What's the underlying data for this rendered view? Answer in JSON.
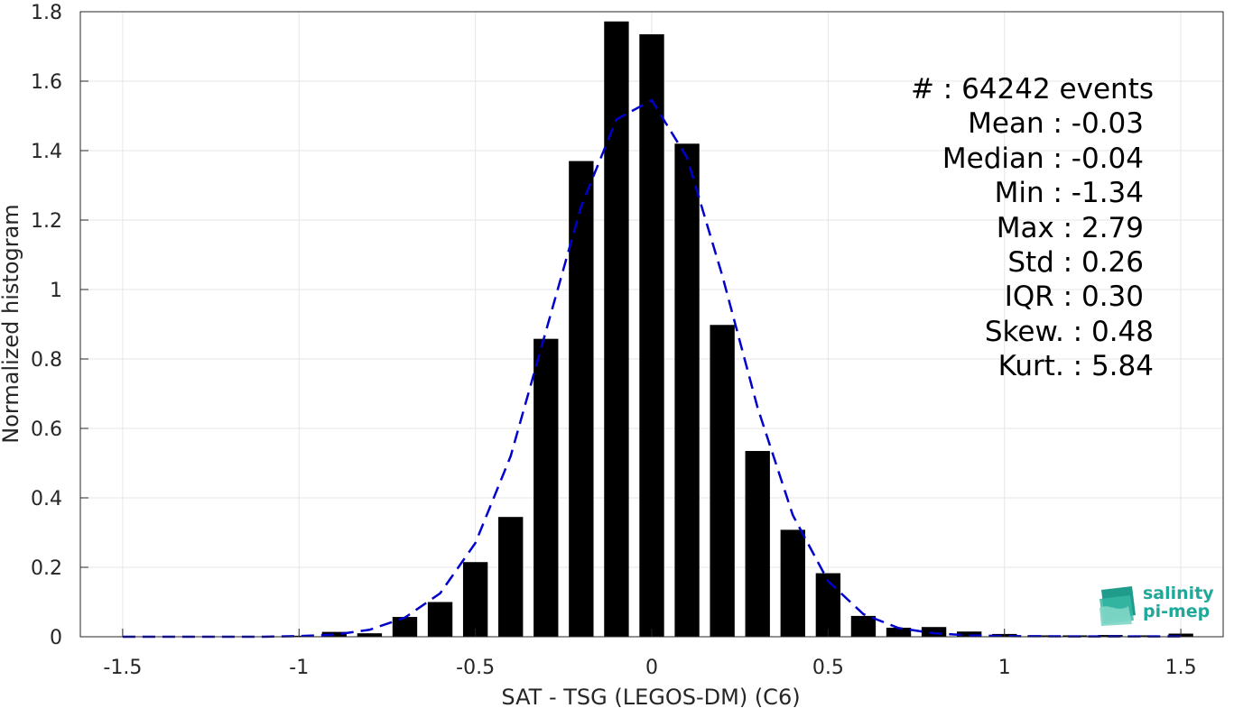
{
  "chart_data": {
    "type": "bar",
    "title": "",
    "xlabel": "SAT - TSG (LEGOS-DM) (C6)",
    "ylabel": "Normalized histogram",
    "xlim": [
      -1.62,
      1.62
    ],
    "ylim": [
      0,
      1.8
    ],
    "grid": true,
    "x_ticks": [
      {
        "value": -1.5,
        "label": "-1.5"
      },
      {
        "value": -1,
        "label": "-1"
      },
      {
        "value": -0.5,
        "label": "-0.5"
      },
      {
        "value": 0,
        "label": "0"
      },
      {
        "value": 0.5,
        "label": "0.5"
      },
      {
        "value": 1,
        "label": "1"
      },
      {
        "value": 1.5,
        "label": "1.5"
      }
    ],
    "y_ticks": [
      {
        "value": 0,
        "label": "0"
      },
      {
        "value": 0.2,
        "label": "0.2"
      },
      {
        "value": 0.4,
        "label": "0.4"
      },
      {
        "value": 0.6,
        "label": "0.6"
      },
      {
        "value": 0.8,
        "label": "0.8"
      },
      {
        "value": 1,
        "label": "1"
      },
      {
        "value": 1.2,
        "label": "1.2"
      },
      {
        "value": 1.4,
        "label": "1.4"
      },
      {
        "value": 1.6,
        "label": "1.6"
      },
      {
        "value": 1.8,
        "label": "1.8"
      }
    ],
    "bar_width": 0.07,
    "bars": {
      "x": [
        -1.0,
        -0.9,
        -0.8,
        -0.7,
        -0.6,
        -0.5,
        -0.4,
        -0.3,
        -0.2,
        -0.1,
        0.0,
        0.1,
        0.2,
        0.3,
        0.4,
        0.5,
        0.6,
        0.7,
        0.8,
        0.9,
        1.0,
        1.1,
        1.2,
        1.3,
        1.4,
        1.5
      ],
      "values": [
        0.003,
        0.014,
        0.01,
        0.057,
        0.1,
        0.215,
        0.345,
        0.858,
        1.37,
        1.772,
        1.735,
        1.42,
        0.898,
        0.535,
        0.308,
        0.183,
        0.06,
        0.026,
        0.028,
        0.015,
        0.008,
        0.004,
        0.004,
        0.005,
        0.004,
        0.009
      ],
      "color": "#000000"
    },
    "fit": {
      "style": "dashed",
      "color": "#0000cd",
      "x": [
        -1.5,
        -1.3,
        -1.1,
        -1.0,
        -0.9,
        -0.8,
        -0.7,
        -0.6,
        -0.5,
        -0.4,
        -0.3,
        -0.2,
        -0.1,
        0.0,
        0.1,
        0.2,
        0.3,
        0.4,
        0.5,
        0.6,
        0.7,
        0.8,
        0.9,
        1.0,
        1.2,
        1.5
      ],
      "y": [
        0.0,
        0.0,
        0.0,
        0.002,
        0.006,
        0.02,
        0.055,
        0.125,
        0.27,
        0.52,
        0.88,
        1.24,
        1.49,
        1.545,
        1.38,
        1.04,
        0.66,
        0.35,
        0.16,
        0.065,
        0.025,
        0.01,
        0.004,
        0.002,
        0.001,
        0.001
      ]
    },
    "legend": "none",
    "annotations": [
      "#  : 64242 events",
      "Mean : -0.03",
      "Median : -0.04",
      "Min : -1.34",
      "Max : 2.79",
      "Std : 0.26",
      "IQR : 0.30",
      "Skew. : 0.48",
      "Kurt. : 5.84"
    ]
  },
  "logo": {
    "line1": "salinity",
    "line2": "pi-mep",
    "color": "#20a89a"
  }
}
